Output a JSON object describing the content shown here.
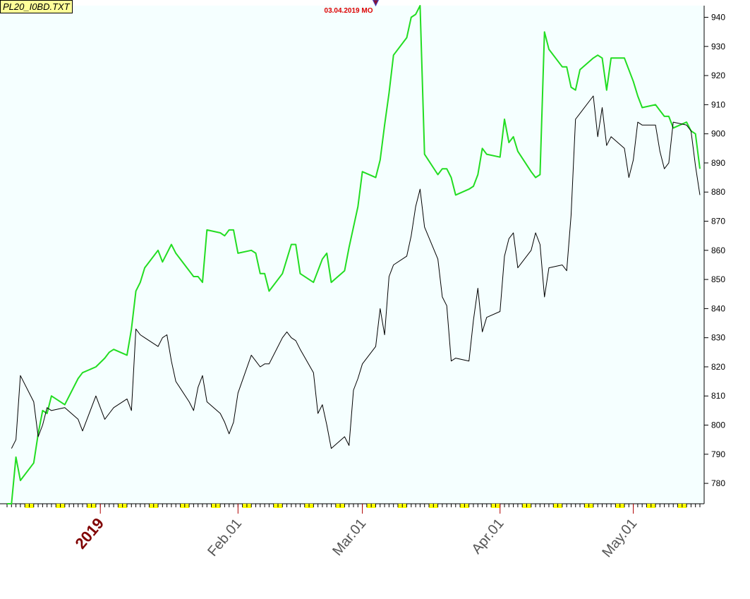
{
  "file_label": "PL20_I0BD.TXT",
  "marker_label": "03.04.2019 MO",
  "colors": {
    "plot_bg": "#f5ffff",
    "green_series": "#22dd22",
    "black_series": "#000000",
    "marker": "#dd0000",
    "year_label": "#800000",
    "month_label": "#555555",
    "tick_highlight": "#ffff00"
  },
  "chart_data": {
    "type": "line",
    "ylim": [
      773,
      944
    ],
    "yticks": [
      780,
      790,
      800,
      810,
      820,
      830,
      840,
      850,
      860,
      870,
      880,
      890,
      900,
      910,
      920,
      930,
      940
    ],
    "x_range": [
      "2018-12-11",
      "2019-05-16"
    ],
    "x_labels": [
      {
        "text": "2019",
        "date": "2019-01-01",
        "style": "year"
      },
      {
        "text": "Feb.01",
        "date": "2019-02-01",
        "style": "month"
      },
      {
        "text": "Mar.01",
        "date": "2019-03-01",
        "style": "month"
      },
      {
        "text": "Apr.01",
        "date": "2019-04-01",
        "style": "month"
      },
      {
        "text": "May.01",
        "date": "2019-05-01",
        "style": "month"
      }
    ],
    "marker": {
      "date": "2019-03-04",
      "value": 944
    },
    "series": [
      {
        "color": "green",
        "points": [
          [
            "2018-12-11",
            773
          ],
          [
            "2018-12-12",
            773
          ],
          [
            "2018-12-13",
            789
          ],
          [
            "2018-12-14",
            781
          ],
          [
            "2018-12-17",
            787
          ],
          [
            "2018-12-18",
            797
          ],
          [
            "2018-12-19",
            805
          ],
          [
            "2018-12-20",
            804
          ],
          [
            "2018-12-21",
            810
          ],
          [
            "2018-12-24",
            807
          ],
          [
            "2018-12-27",
            816
          ],
          [
            "2018-12-28",
            818
          ],
          [
            "2018-12-31",
            820
          ],
          [
            "2019-01-02",
            823
          ],
          [
            "2019-01-03",
            825
          ],
          [
            "2019-01-04",
            826
          ],
          [
            "2019-01-07",
            824
          ],
          [
            "2019-01-08",
            833
          ],
          [
            "2019-01-09",
            846
          ],
          [
            "2019-01-10",
            849
          ],
          [
            "2019-01-11",
            854
          ],
          [
            "2019-01-14",
            860
          ],
          [
            "2019-01-15",
            856
          ],
          [
            "2019-01-16",
            859
          ],
          [
            "2019-01-17",
            862
          ],
          [
            "2019-01-18",
            859
          ],
          [
            "2019-01-21",
            853
          ],
          [
            "2019-01-22",
            851
          ],
          [
            "2019-01-23",
            851
          ],
          [
            "2019-01-24",
            849
          ],
          [
            "2019-01-25",
            867
          ],
          [
            "2019-01-28",
            866
          ],
          [
            "2019-01-29",
            865
          ],
          [
            "2019-01-30",
            867
          ],
          [
            "2019-01-31",
            867
          ],
          [
            "2019-02-01",
            859
          ],
          [
            "2019-02-04",
            860
          ],
          [
            "2019-02-05",
            859
          ],
          [
            "2019-02-06",
            852
          ],
          [
            "2019-02-07",
            852
          ],
          [
            "2019-02-08",
            846
          ],
          [
            "2019-02-11",
            852
          ],
          [
            "2019-02-12",
            857
          ],
          [
            "2019-02-13",
            862
          ],
          [
            "2019-02-14",
            862
          ],
          [
            "2019-02-15",
            852
          ],
          [
            "2019-02-18",
            849
          ],
          [
            "2019-02-19",
            853
          ],
          [
            "2019-02-20",
            857
          ],
          [
            "2019-02-21",
            859
          ],
          [
            "2019-02-22",
            849
          ],
          [
            "2019-02-25",
            853
          ],
          [
            "2019-02-26",
            861
          ],
          [
            "2019-02-27",
            868
          ],
          [
            "2019-02-28",
            875
          ],
          [
            "2019-03-01",
            887
          ],
          [
            "2019-03-04",
            885
          ],
          [
            "2019-03-05",
            891
          ],
          [
            "2019-03-06",
            903
          ],
          [
            "2019-03-07",
            914
          ],
          [
            "2019-03-08",
            927
          ],
          [
            "2019-03-11",
            933
          ],
          [
            "2019-03-12",
            940
          ],
          [
            "2019-03-13",
            941
          ],
          [
            "2019-03-14",
            944
          ],
          [
            "2019-03-15",
            893
          ],
          [
            "2019-03-18",
            886
          ],
          [
            "2019-03-19",
            888
          ],
          [
            "2019-03-20",
            888
          ],
          [
            "2019-03-21",
            885
          ],
          [
            "2019-03-22",
            879
          ],
          [
            "2019-03-25",
            881
          ],
          [
            "2019-03-26",
            882
          ],
          [
            "2019-03-27",
            886
          ],
          [
            "2019-03-28",
            895
          ],
          [
            "2019-03-29",
            893
          ],
          [
            "2019-04-01",
            892
          ],
          [
            "2019-04-02",
            905
          ],
          [
            "2019-04-03",
            897
          ],
          [
            "2019-04-04",
            899
          ],
          [
            "2019-04-05",
            894
          ],
          [
            "2019-04-08",
            887
          ],
          [
            "2019-04-09",
            885
          ],
          [
            "2019-04-10",
            886
          ],
          [
            "2019-04-11",
            935
          ],
          [
            "2019-04-12",
            929
          ],
          [
            "2019-04-15",
            923
          ],
          [
            "2019-04-16",
            923
          ],
          [
            "2019-04-17",
            916
          ],
          [
            "2019-04-18",
            915
          ],
          [
            "2019-04-19",
            922
          ],
          [
            "2019-04-22",
            926
          ],
          [
            "2019-04-23",
            927
          ],
          [
            "2019-04-24",
            926
          ],
          [
            "2019-04-25",
            915
          ],
          [
            "2019-04-26",
            926
          ],
          [
            "2019-04-29",
            926
          ],
          [
            "2019-04-30",
            922
          ],
          [
            "2019-05-01",
            918
          ],
          [
            "2019-05-02",
            913
          ],
          [
            "2019-05-03",
            909
          ],
          [
            "2019-05-06",
            910
          ],
          [
            "2019-05-07",
            908
          ],
          [
            "2019-05-08",
            906
          ],
          [
            "2019-05-09",
            906
          ],
          [
            "2019-05-10",
            902
          ],
          [
            "2019-05-13",
            904
          ],
          [
            "2019-05-14",
            901
          ],
          [
            "2019-05-15",
            900
          ],
          [
            "2019-05-16",
            888
          ]
        ]
      },
      {
        "color": "black",
        "points": [
          [
            "2018-12-12",
            792
          ],
          [
            "2018-12-13",
            795
          ],
          [
            "2018-12-14",
            817
          ],
          [
            "2018-12-17",
            808
          ],
          [
            "2018-12-18",
            796
          ],
          [
            "2018-12-19",
            800
          ],
          [
            "2018-12-20",
            806
          ],
          [
            "2018-12-21",
            805
          ],
          [
            "2018-12-24",
            806
          ],
          [
            "2018-12-27",
            802
          ],
          [
            "2018-12-28",
            798
          ],
          [
            "2018-12-31",
            810
          ],
          [
            "2019-01-02",
            802
          ],
          [
            "2019-01-03",
            804
          ],
          [
            "2019-01-04",
            806
          ],
          [
            "2019-01-07",
            809
          ],
          [
            "2019-01-08",
            805
          ],
          [
            "2019-01-09",
            833
          ],
          [
            "2019-01-10",
            831
          ],
          [
            "2019-01-11",
            830
          ],
          [
            "2019-01-14",
            827
          ],
          [
            "2019-01-15",
            830
          ],
          [
            "2019-01-16",
            831
          ],
          [
            "2019-01-17",
            822
          ],
          [
            "2019-01-18",
            815
          ],
          [
            "2019-01-21",
            808
          ],
          [
            "2019-01-22",
            805
          ],
          [
            "2019-01-23",
            813
          ],
          [
            "2019-01-24",
            817
          ],
          [
            "2019-01-25",
            808
          ],
          [
            "2019-01-28",
            804
          ],
          [
            "2019-01-29",
            801
          ],
          [
            "2019-01-30",
            797
          ],
          [
            "2019-01-31",
            801
          ],
          [
            "2019-02-01",
            811
          ],
          [
            "2019-02-04",
            824
          ],
          [
            "2019-02-05",
            822
          ],
          [
            "2019-02-06",
            820
          ],
          [
            "2019-02-07",
            821
          ],
          [
            "2019-02-08",
            821
          ],
          [
            "2019-02-11",
            830
          ],
          [
            "2019-02-12",
            832
          ],
          [
            "2019-02-13",
            830
          ],
          [
            "2019-02-14",
            829
          ],
          [
            "2019-02-15",
            826
          ],
          [
            "2019-02-18",
            818
          ],
          [
            "2019-02-19",
            804
          ],
          [
            "2019-02-20",
            807
          ],
          [
            "2019-02-21",
            800
          ],
          [
            "2019-02-22",
            792
          ],
          [
            "2019-02-25",
            796
          ],
          [
            "2019-02-26",
            793
          ],
          [
            "2019-02-27",
            812
          ],
          [
            "2019-02-28",
            816
          ],
          [
            "2019-03-01",
            821
          ],
          [
            "2019-03-04",
            827
          ],
          [
            "2019-03-05",
            840
          ],
          [
            "2019-03-06",
            831
          ],
          [
            "2019-03-07",
            851
          ],
          [
            "2019-03-08",
            855
          ],
          [
            "2019-03-11",
            858
          ],
          [
            "2019-03-12",
            865
          ],
          [
            "2019-03-13",
            875
          ],
          [
            "2019-03-14",
            881
          ],
          [
            "2019-03-15",
            868
          ],
          [
            "2019-03-18",
            857
          ],
          [
            "2019-03-19",
            844
          ],
          [
            "2019-03-20",
            841
          ],
          [
            "2019-03-21",
            822
          ],
          [
            "2019-03-22",
            823
          ],
          [
            "2019-03-25",
            822
          ],
          [
            "2019-03-26",
            836
          ],
          [
            "2019-03-27",
            847
          ],
          [
            "2019-03-28",
            832
          ],
          [
            "2019-03-29",
            837
          ],
          [
            "2019-04-01",
            839
          ],
          [
            "2019-04-02",
            858
          ],
          [
            "2019-04-03",
            864
          ],
          [
            "2019-04-04",
            866
          ],
          [
            "2019-04-05",
            854
          ],
          [
            "2019-04-08",
            860
          ],
          [
            "2019-04-09",
            866
          ],
          [
            "2019-04-10",
            862
          ],
          [
            "2019-04-11",
            844
          ],
          [
            "2019-04-12",
            854
          ],
          [
            "2019-04-15",
            855
          ],
          [
            "2019-04-16",
            853
          ],
          [
            "2019-04-17",
            872
          ],
          [
            "2019-04-18",
            905
          ],
          [
            "2019-04-19",
            907
          ],
          [
            "2019-04-22",
            913
          ],
          [
            "2019-04-23",
            899
          ],
          [
            "2019-04-24",
            909
          ],
          [
            "2019-04-25",
            896
          ],
          [
            "2019-04-26",
            899
          ],
          [
            "2019-04-29",
            895
          ],
          [
            "2019-04-30",
            885
          ],
          [
            "2019-05-01",
            891
          ],
          [
            "2019-05-02",
            904
          ],
          [
            "2019-05-03",
            903
          ],
          [
            "2019-05-06",
            903
          ],
          [
            "2019-05-07",
            894
          ],
          [
            "2019-05-08",
            888
          ],
          [
            "2019-05-09",
            890
          ],
          [
            "2019-05-10",
            904
          ],
          [
            "2019-05-13",
            903
          ],
          [
            "2019-05-14",
            901
          ],
          [
            "2019-05-15",
            889
          ],
          [
            "2019-05-16",
            879
          ]
        ]
      }
    ]
  }
}
